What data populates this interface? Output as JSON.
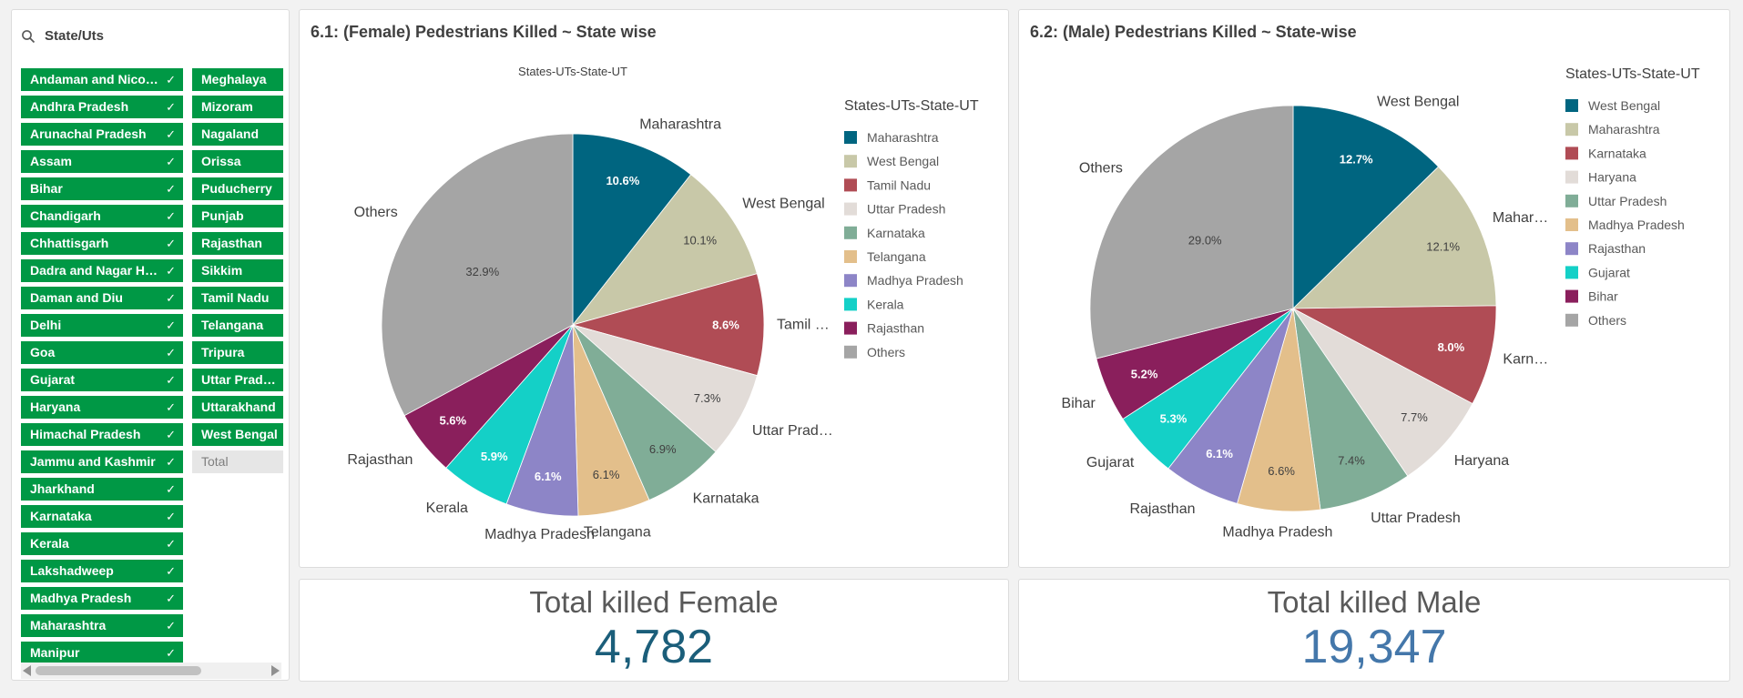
{
  "filter": {
    "title": "State/Uts",
    "selected_items": [
      "Andaman and Nicobar Islands",
      "Andhra Pradesh",
      "Arunachal Pradesh",
      "Assam",
      "Bihar",
      "Chandigarh",
      "Chhattisgarh",
      "Dadra and Nagar Haveli",
      "Daman and Diu",
      "Delhi",
      "Goa",
      "Gujarat",
      "Haryana",
      "Himachal Pradesh",
      "Jammu and Kashmir",
      "Jharkhand",
      "Karnataka",
      "Kerala",
      "Lakshadweep",
      "Madhya Pradesh",
      "Maharashtra",
      "Manipur",
      "Meghalaya",
      "Mizoram",
      "Nagaland",
      "Orissa",
      "Puducherry",
      "Punjab",
      "Rajasthan",
      "Sikkim",
      "Tamil Nadu",
      "Telangana",
      "Tripura",
      "Uttar Pradesh",
      "Uttarakhand",
      "West Bengal"
    ],
    "other_items": [
      "Total"
    ],
    "selected_color": "#009845"
  },
  "chart_data": [
    {
      "type": "pie",
      "title": "6.1: (Female) Pedestrians Killed ~ State wise",
      "subtitle": "States-UTs-State-UT",
      "legend_title": "States-UTs-State-UT",
      "legend_position": "right",
      "categories": [
        "Maharashtra",
        "West Bengal",
        "Tamil Nadu",
        "Uttar Pradesh",
        "Karnataka",
        "Telangana",
        "Madhya Pradesh",
        "Kerala",
        "Rajasthan",
        "Others"
      ],
      "outer_labels": [
        "Maharashtra",
        "West Bengal",
        "Tamil …",
        "Uttar Prad…",
        "Karnataka",
        "Telangana",
        "Madhya Pradesh",
        "Kerala",
        "Rajasthan",
        "Others"
      ],
      "values": [
        10.6,
        10.1,
        8.6,
        7.3,
        6.9,
        6.1,
        6.1,
        5.9,
        5.6,
        32.9
      ],
      "value_labels": [
        "10.6%",
        "10.1%",
        "8.6%",
        "7.3%",
        "6.9%",
        "6.1%",
        "6.1%",
        "5.9%",
        "5.6%",
        "32.9%"
      ],
      "colors": [
        "#006580",
        "#c8c8a8",
        "#b04c55",
        "#e2dcd8",
        "#80ad97",
        "#e3bf8b",
        "#8d85c7",
        "#14d0c7",
        "#8a1f5c",
        "#a5a5a5"
      ]
    },
    {
      "type": "pie",
      "title": "6.2: (Male) Pedestrians Killed ~ State-wise",
      "legend_title": "States-UTs-State-UT",
      "legend_position": "right",
      "categories": [
        "West Bengal",
        "Maharashtra",
        "Karnataka",
        "Haryana",
        "Uttar Pradesh",
        "Madhya Pradesh",
        "Rajasthan",
        "Gujarat",
        "Bihar",
        "Others"
      ],
      "outer_labels": [
        "West Bengal",
        "Mahar…",
        "Karn…",
        "Haryana",
        "Uttar Pradesh",
        "Madhya Pradesh",
        "Rajasthan",
        "Gujarat",
        "Bihar",
        "Others"
      ],
      "values": [
        12.7,
        12.1,
        8.0,
        7.7,
        7.4,
        6.6,
        6.1,
        5.3,
        5.2,
        29.0
      ],
      "value_labels": [
        "12.7%",
        "12.1%",
        "8.0%",
        "7.7%",
        "7.4%",
        "6.6%",
        "6.1%",
        "5.3%",
        "5.2%",
        "29.0%"
      ],
      "colors": [
        "#006580",
        "#c8c8a8",
        "#b04c55",
        "#e2dcd8",
        "#80ad97",
        "#e3bf8b",
        "#8d85c7",
        "#14d0c7",
        "#8a1f5c",
        "#a5a5a5"
      ]
    }
  ],
  "kpis": {
    "female": {
      "label": "Total killed Female",
      "value": "4,782",
      "color": "#1b5e7a"
    },
    "male": {
      "label": "Total killed Male",
      "value": "19,347",
      "color": "#4477aa"
    }
  }
}
